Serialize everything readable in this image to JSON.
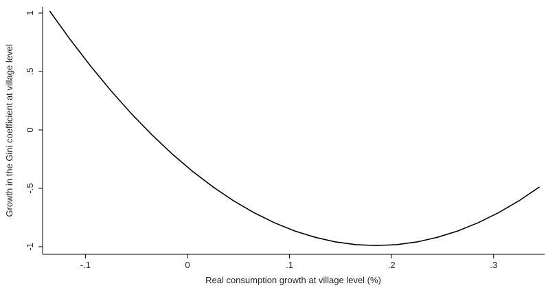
{
  "chart_data": {
    "type": "line",
    "xlabel": "Real consumption growth at village level (%)",
    "ylabel": "Growth in the Gini coefficient at village level",
    "x": [
      -0.135,
      -0.115,
      -0.095,
      -0.075,
      -0.055,
      -0.035,
      -0.015,
      0.005,
      0.025,
      0.045,
      0.065,
      0.085,
      0.105,
      0.125,
      0.145,
      0.165,
      0.185,
      0.205,
      0.225,
      0.245,
      0.265,
      0.285,
      0.305,
      0.325,
      0.345
    ],
    "series": [
      {
        "color": "#000000",
        "values": [
          1.017,
          0.774,
          0.547,
          0.335,
          0.139,
          -0.041,
          -0.206,
          -0.355,
          -0.488,
          -0.606,
          -0.708,
          -0.794,
          -0.865,
          -0.919,
          -0.959,
          -0.982,
          -0.99,
          -0.982,
          -0.959,
          -0.919,
          -0.865,
          -0.794,
          -0.708,
          -0.606,
          -0.488
        ]
      }
    ],
    "xlim": [
      -0.142,
      0.35
    ],
    "ylim": [
      -1.065,
      1.053
    ],
    "xticks": [
      {
        "value": -0.1,
        "label": "-.1"
      },
      0,
      {
        "value": 0.1,
        "label": ".1"
      },
      {
        "value": 0.2,
        "label": ".2"
      },
      {
        "value": 0.3,
        "label": ".3"
      }
    ],
    "yticks": [
      -1,
      {
        "value": -0.5,
        "label": "-.5"
      },
      0,
      {
        "value": 0.5,
        "label": ".5"
      },
      1
    ]
  }
}
